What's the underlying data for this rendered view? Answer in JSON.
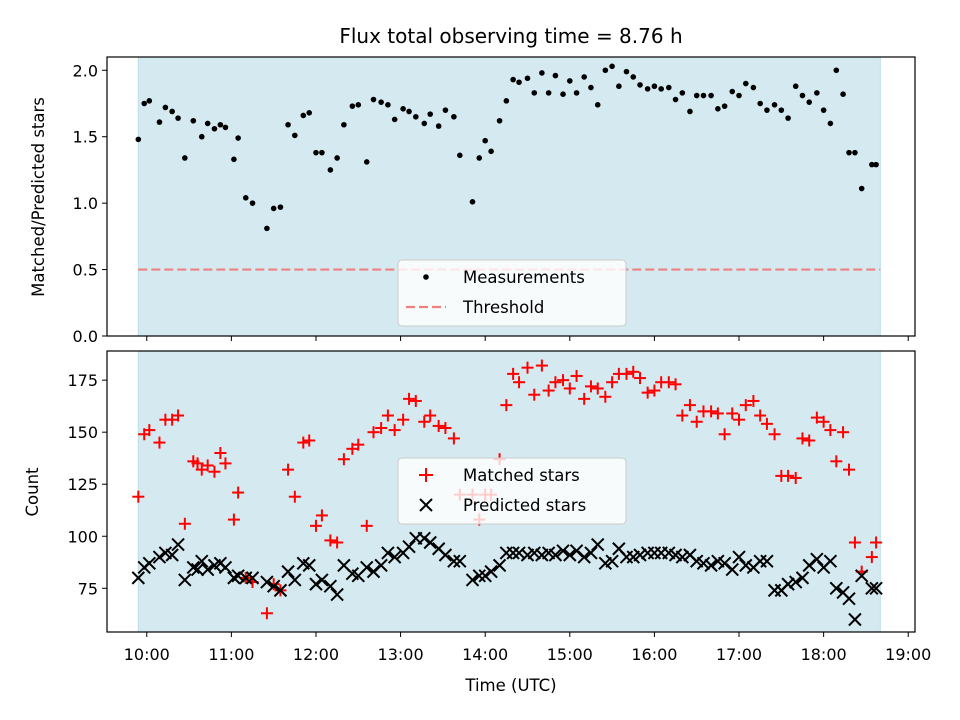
{
  "chart_data": [
    {
      "type": "scatter",
      "title": "Flux total observing time = 8.76 h",
      "xlabel": "",
      "ylabel": "Matched/Predicted stars",
      "xlim": [
        9.53,
        19.08
      ],
      "ylim": [
        0,
        2.1
      ],
      "yticks": [
        0.0,
        0.5,
        1.0,
        1.5,
        2.0
      ],
      "ytick_labels": [
        "0.0",
        "0.5",
        "1.0",
        "1.5",
        "2.0"
      ],
      "observing_window": [
        9.9,
        18.67
      ],
      "series": [
        {
          "name": "Measurements",
          "color": "#000000",
          "marker": "dot",
          "x": [
            9.9,
            9.97,
            10.03,
            10.15,
            10.22,
            10.3,
            10.37,
            10.45,
            10.55,
            10.65,
            10.72,
            10.8,
            10.87,
            10.93,
            11.03,
            11.08,
            11.17,
            11.25,
            11.42,
            11.5,
            11.58,
            11.67,
            11.75,
            11.85,
            11.92,
            12.0,
            12.07,
            12.17,
            12.25,
            12.33,
            12.43,
            12.5,
            12.6,
            12.68,
            12.77,
            12.85,
            12.93,
            13.03,
            13.1,
            13.18,
            13.28,
            13.35,
            13.45,
            13.53,
            13.63,
            13.7,
            13.85,
            13.93,
            14.0,
            14.07,
            14.17,
            14.25,
            14.33,
            14.4,
            14.5,
            14.58,
            14.67,
            14.75,
            14.83,
            14.92,
            15.0,
            15.08,
            15.17,
            15.25,
            15.33,
            15.42,
            15.5,
            15.58,
            15.67,
            15.75,
            15.83,
            15.92,
            16.0,
            16.08,
            16.17,
            16.25,
            16.33,
            16.42,
            16.5,
            16.58,
            16.67,
            16.75,
            16.83,
            16.92,
            17.0,
            17.08,
            17.17,
            17.25,
            17.33,
            17.42,
            17.5,
            17.58,
            17.67,
            17.75,
            17.83,
            17.92,
            18.0,
            18.08,
            18.15,
            18.23,
            18.3,
            18.37,
            18.45,
            18.57,
            18.62
          ],
          "y": [
            1.48,
            1.75,
            1.77,
            1.61,
            1.72,
            1.69,
            1.64,
            1.34,
            1.62,
            1.5,
            1.6,
            1.56,
            1.59,
            1.57,
            1.33,
            1.49,
            1.04,
            1.0,
            0.81,
            0.96,
            0.97,
            1.59,
            1.51,
            1.66,
            1.68,
            1.38,
            1.38,
            1.25,
            1.34,
            1.59,
            1.73,
            1.74,
            1.31,
            1.78,
            1.76,
            1.74,
            1.63,
            1.71,
            1.69,
            1.65,
            1.6,
            1.67,
            1.58,
            1.7,
            1.65,
            1.36,
            1.01,
            1.34,
            1.47,
            1.39,
            1.62,
            1.77,
            1.93,
            1.91,
            1.94,
            1.83,
            1.98,
            1.83,
            1.96,
            1.82,
            1.92,
            1.83,
            1.95,
            1.87,
            1.74,
            2.0,
            2.03,
            1.88,
            1.99,
            1.95,
            1.89,
            1.86,
            1.88,
            1.86,
            1.87,
            1.78,
            1.83,
            1.69,
            1.81,
            1.81,
            1.81,
            1.71,
            1.73,
            1.84,
            1.81,
            1.9,
            1.87,
            1.75,
            1.7,
            1.74,
            1.7,
            1.64,
            1.88,
            1.81,
            1.76,
            1.83,
            1.7,
            1.6,
            2.0,
            1.82,
            1.38,
            1.38,
            1.11,
            1.29,
            1.29
          ]
        },
        {
          "name": "Threshold",
          "color": "#f08080",
          "style": "dashed",
          "value": 0.5
        }
      ],
      "legend": [
        "Measurements",
        "Threshold"
      ],
      "legend_position": "lower-center"
    },
    {
      "type": "scatter",
      "title": "",
      "xlabel": "Time (UTC)",
      "ylabel": "Count",
      "xlim": [
        9.53,
        19.08
      ],
      "ylim": [
        54,
        189
      ],
      "yticks": [
        75,
        100,
        125,
        150,
        175
      ],
      "ytick_labels": [
        "75",
        "100",
        "125",
        "150",
        "175"
      ],
      "xticks": [
        10,
        11,
        12,
        13,
        14,
        15,
        16,
        17,
        18,
        19
      ],
      "xtick_labels": [
        "10:00",
        "11:00",
        "12:00",
        "13:00",
        "14:00",
        "15:00",
        "16:00",
        "17:00",
        "18:00",
        "19:00"
      ],
      "observing_window": [
        9.9,
        18.67
      ],
      "series": [
        {
          "name": "Matched stars",
          "color": "#ff0000",
          "marker": "plus",
          "x": [
            9.9,
            9.97,
            10.03,
            10.15,
            10.22,
            10.3,
            10.37,
            10.45,
            10.55,
            10.6,
            10.65,
            10.72,
            10.8,
            10.87,
            10.93,
            11.03,
            11.08,
            11.17,
            11.25,
            11.42,
            11.5,
            11.58,
            11.67,
            11.75,
            11.85,
            11.92,
            12.0,
            12.07,
            12.17,
            12.25,
            12.33,
            12.43,
            12.5,
            12.6,
            12.68,
            12.77,
            12.85,
            12.93,
            13.03,
            13.1,
            13.18,
            13.28,
            13.35,
            13.45,
            13.53,
            13.63,
            13.7,
            13.85,
            13.93,
            14.0,
            14.07,
            14.17,
            14.25,
            14.33,
            14.4,
            14.5,
            14.58,
            14.67,
            14.75,
            14.83,
            14.92,
            15.0,
            15.08,
            15.17,
            15.25,
            15.33,
            15.42,
            15.5,
            15.58,
            15.67,
            15.75,
            15.83,
            15.92,
            16.0,
            16.08,
            16.17,
            16.25,
            16.33,
            16.42,
            16.5,
            16.58,
            16.67,
            16.75,
            16.83,
            16.92,
            17.0,
            17.08,
            17.17,
            17.25,
            17.33,
            17.42,
            17.5,
            17.58,
            17.67,
            17.75,
            17.83,
            17.92,
            18.0,
            18.08,
            18.15,
            18.23,
            18.3,
            18.37,
            18.45,
            18.57,
            18.62
          ],
          "y": [
            119,
            149,
            151,
            145,
            156,
            156,
            158,
            106,
            136,
            135,
            132,
            134,
            131,
            140,
            135,
            108,
            121,
            80,
            78,
            63,
            77,
            74,
            132,
            119,
            145,
            146,
            105,
            110,
            98,
            97,
            137,
            142,
            144,
            105,
            150,
            152,
            158,
            151,
            156,
            166,
            165,
            155,
            158,
            153,
            152,
            147,
            120,
            120,
            108,
            120,
            120,
            137,
            163,
            178,
            174,
            181,
            168,
            182,
            170,
            174,
            175,
            171,
            177,
            166,
            172,
            171,
            167,
            174,
            178,
            178,
            179,
            176,
            169,
            170,
            174,
            174,
            173,
            158,
            163,
            155,
            160,
            160,
            159,
            149,
            159,
            156,
            163,
            165,
            158,
            154,
            149,
            129,
            129,
            128,
            147,
            146,
            157,
            155,
            151,
            136,
            150,
            132,
            97,
            83,
            90,
            97
          ]
        },
        {
          "name": "Predicted stars",
          "color": "#000000",
          "marker": "x",
          "x": [
            9.9,
            9.97,
            10.03,
            10.15,
            10.22,
            10.3,
            10.37,
            10.45,
            10.55,
            10.6,
            10.65,
            10.72,
            10.8,
            10.87,
            10.93,
            11.03,
            11.08,
            11.17,
            11.25,
            11.42,
            11.5,
            11.58,
            11.67,
            11.75,
            11.85,
            11.92,
            12.0,
            12.07,
            12.17,
            12.25,
            12.33,
            12.43,
            12.5,
            12.6,
            12.68,
            12.77,
            12.85,
            12.93,
            13.03,
            13.1,
            13.18,
            13.28,
            13.35,
            13.45,
            13.53,
            13.63,
            13.7,
            13.85,
            13.93,
            14.0,
            14.07,
            14.17,
            14.25,
            14.33,
            14.4,
            14.5,
            14.58,
            14.67,
            14.75,
            14.83,
            14.92,
            15.0,
            15.08,
            15.17,
            15.25,
            15.33,
            15.42,
            15.5,
            15.58,
            15.67,
            15.75,
            15.83,
            15.92,
            16.0,
            16.08,
            16.17,
            16.25,
            16.33,
            16.42,
            16.5,
            16.58,
            16.67,
            16.75,
            16.83,
            16.92,
            17.0,
            17.08,
            17.17,
            17.25,
            17.33,
            17.42,
            17.5,
            17.58,
            17.67,
            17.75,
            17.83,
            17.92,
            18.0,
            18.08,
            18.15,
            18.23,
            18.3,
            18.37,
            18.45,
            18.57,
            18.62
          ],
          "y": [
            80,
            85,
            87,
            90,
            92,
            91,
            96,
            79,
            85,
            84,
            88,
            84,
            86,
            87,
            85,
            80,
            81,
            80,
            80,
            78,
            76,
            74,
            83,
            79,
            87,
            86,
            77,
            79,
            76,
            72,
            86,
            82,
            81,
            85,
            83,
            86,
            92,
            90,
            92,
            95,
            99,
            99,
            97,
            94,
            91,
            88,
            88,
            79,
            81,
            81,
            83,
            86,
            92,
            92,
            92,
            91,
            92,
            91,
            92,
            91,
            93,
            91,
            93,
            90,
            92,
            96,
            87,
            88,
            94,
            90,
            90,
            91,
            92,
            92,
            92,
            92,
            91,
            90,
            91,
            88,
            87,
            86,
            88,
            87,
            84,
            90,
            86,
            85,
            88,
            88,
            74,
            74,
            77,
            78,
            80,
            86,
            89,
            85,
            88,
            75,
            73,
            70,
            60,
            81,
            75,
            75
          ]
        }
      ],
      "legend": [
        "Matched stars",
        "Predicted stars"
      ],
      "legend_position": "center"
    }
  ]
}
